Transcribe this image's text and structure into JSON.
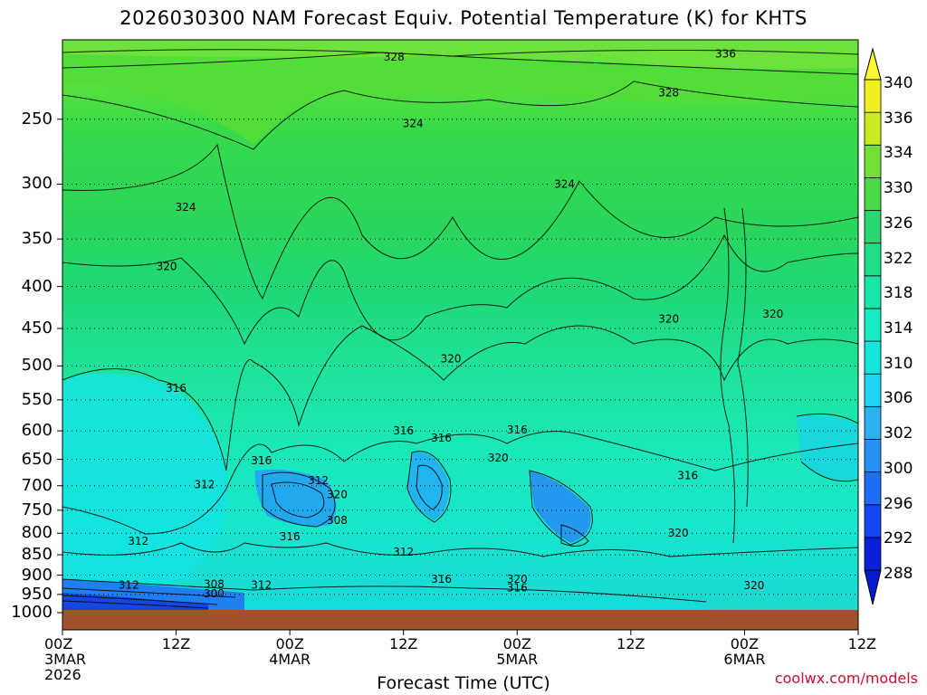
{
  "chart_data": {
    "type": "heatmap",
    "title": "2026030300 NAM Forecast Equiv. Potential Temperature (K) for KHTS",
    "xlabel": "Forecast Time (UTC)",
    "ylabel": "",
    "credit": "coolwx.com/models",
    "y_axis": {
      "scale": "pressure",
      "range": [
        1000,
        200
      ],
      "ticks": [
        "250",
        "300",
        "350",
        "400",
        "450",
        "500",
        "550",
        "600",
        "650",
        "700",
        "750",
        "800",
        "850",
        "900",
        "950",
        "1000"
      ]
    },
    "x_axis": {
      "range_hours": [
        0,
        84
      ],
      "ticks": [
        {
          "hour": 0,
          "lines": [
            "00Z",
            "3MAR",
            "2026"
          ]
        },
        {
          "hour": 12,
          "lines": [
            "12Z"
          ]
        },
        {
          "hour": 24,
          "lines": [
            "00Z",
            "4MAR"
          ]
        },
        {
          "hour": 36,
          "lines": [
            "12Z"
          ]
        },
        {
          "hour": 48,
          "lines": [
            "00Z",
            "5MAR"
          ]
        },
        {
          "hour": 60,
          "lines": [
            "12Z"
          ]
        },
        {
          "hour": 72,
          "lines": [
            "00Z",
            "6MAR"
          ]
        },
        {
          "hour": 84,
          "lines": [
            "12Z"
          ]
        }
      ]
    },
    "colorbar": {
      "levels": [
        288,
        292,
        296,
        300,
        302,
        306,
        310,
        314,
        318,
        322,
        326,
        330,
        334,
        336,
        340
      ],
      "labels": [
        "340",
        "336",
        "334",
        "330",
        "326",
        "322",
        "318",
        "314",
        "310",
        "306",
        "302",
        "300",
        "296",
        "292",
        "288"
      ],
      "colors": [
        "#0a1fd8",
        "#1446f0",
        "#1e6ef5",
        "#2891f5",
        "#2cb0f0",
        "#1ed4ee",
        "#14e6dc",
        "#18ecc4",
        "#18e6a8",
        "#1ede8a",
        "#2ad670",
        "#48d848",
        "#70e038",
        "#c8ec20",
        "#f0f020"
      ]
    },
    "contour_labels": [
      {
        "text": "328",
        "hour": 35,
        "p": 210
      },
      {
        "text": "336",
        "hour": 70,
        "p": 208
      },
      {
        "text": "328",
        "hour": 64,
        "p": 232
      },
      {
        "text": "324",
        "hour": 37,
        "p": 253
      },
      {
        "text": "324",
        "hour": 13,
        "p": 320
      },
      {
        "text": "324",
        "hour": 53,
        "p": 300
      },
      {
        "text": "320",
        "hour": 11,
        "p": 378
      },
      {
        "text": "320",
        "hour": 64,
        "p": 438
      },
      {
        "text": "320",
        "hour": 75,
        "p": 432
      },
      {
        "text": "320",
        "hour": 41,
        "p": 490
      },
      {
        "text": "316",
        "hour": 12,
        "p": 532
      },
      {
        "text": "316",
        "hour": 36,
        "p": 600
      },
      {
        "text": "316",
        "hour": 40,
        "p": 612
      },
      {
        "text": "316",
        "hour": 48,
        "p": 598
      },
      {
        "text": "316",
        "hour": 21,
        "p": 652
      },
      {
        "text": "312",
        "hour": 27,
        "p": 690
      },
      {
        "text": "320",
        "hour": 29,
        "p": 718
      },
      {
        "text": "312",
        "hour": 15,
        "p": 698
      },
      {
        "text": "320",
        "hour": 46,
        "p": 647
      },
      {
        "text": "316",
        "hour": 66,
        "p": 680
      },
      {
        "text": "308",
        "hour": 29,
        "p": 772
      },
      {
        "text": "316",
        "hour": 24,
        "p": 808
      },
      {
        "text": "312",
        "hour": 8,
        "p": 818
      },
      {
        "text": "320",
        "hour": 65,
        "p": 800
      },
      {
        "text": "312",
        "hour": 36,
        "p": 843
      },
      {
        "text": "316",
        "hour": 40,
        "p": 910
      },
      {
        "text": "320",
        "hour": 48,
        "p": 910
      },
      {
        "text": "316",
        "hour": 48,
        "p": 932
      },
      {
        "text": "312",
        "hour": 7,
        "p": 925
      },
      {
        "text": "308",
        "hour": 16,
        "p": 923
      },
      {
        "text": "312",
        "hour": 21,
        "p": 925
      },
      {
        "text": "300",
        "hour": 16,
        "p": 948
      },
      {
        "text": "320",
        "hour": 73,
        "p": 927
      }
    ]
  }
}
